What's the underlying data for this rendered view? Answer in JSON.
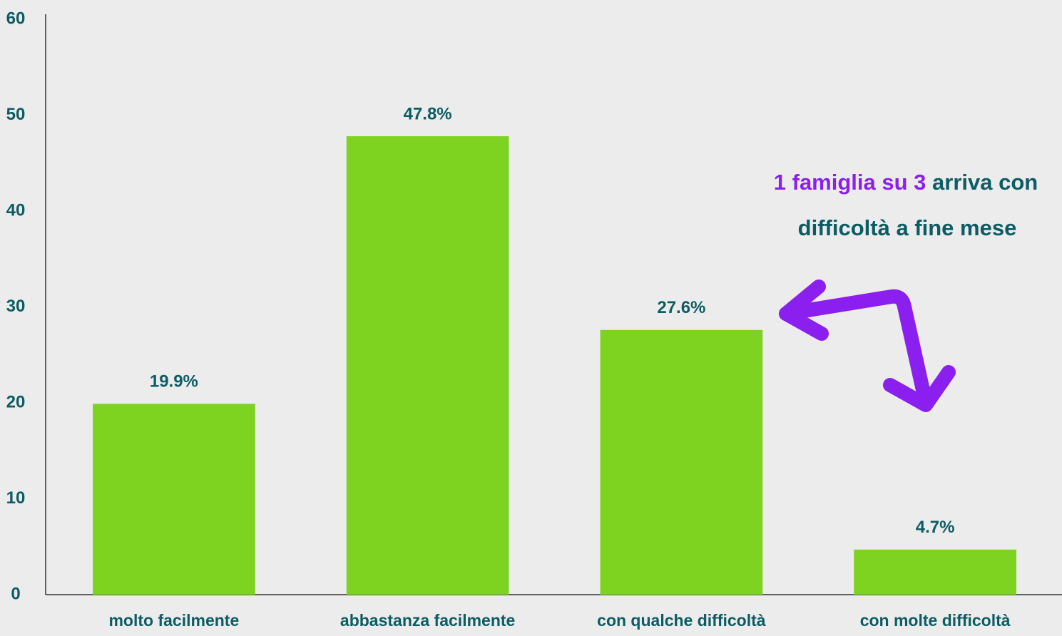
{
  "chart_data": {
    "type": "bar",
    "categories": [
      "molto facilmente",
      "abbastanza facilmente",
      "con qualche difficoltà",
      "con molte difficoltà"
    ],
    "values": [
      19.9,
      47.8,
      27.6,
      4.7
    ],
    "value_labels": [
      "19.9%",
      "47.8%",
      "27.6%",
      "4.7%"
    ],
    "color": "#7ed321",
    "ylim": [
      0,
      60
    ],
    "yticks": [
      0,
      10,
      20,
      30,
      40,
      50,
      60
    ],
    "grid": false,
    "annotation": {
      "highlight": "1 famiglia su 3",
      "line1": "arriva con",
      "line2": "difficoltà a fine mese"
    }
  }
}
